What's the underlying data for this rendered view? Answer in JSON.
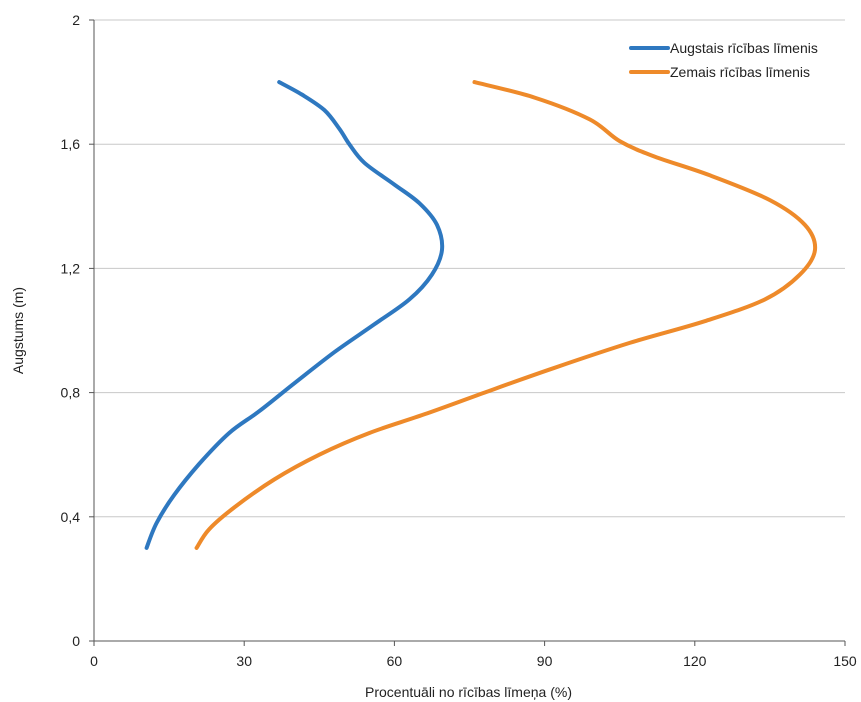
{
  "chart_data": {
    "type": "line",
    "title": "",
    "xlabel": "Procentuāli no rīcības līmeņa (%)",
    "ylabel": "Augstums (m)",
    "xlim": [
      0,
      150
    ],
    "ylim": [
      0,
      2
    ],
    "x_ticks": [
      "0",
      "30",
      "60",
      "90",
      "120",
      "150"
    ],
    "y_ticks": [
      "0",
      "0,4",
      "0,8",
      "1,2",
      "1,6",
      "2"
    ],
    "grid": "horizontal",
    "legend_position": "top-right",
    "series": [
      {
        "name": "Augstais rīcības līmenis",
        "color": "#2e78c0",
        "points": [
          [
            10.5,
            0.3
          ],
          [
            12.5,
            0.38
          ],
          [
            16,
            0.47
          ],
          [
            21,
            0.57
          ],
          [
            27,
            0.67
          ],
          [
            33,
            0.74
          ],
          [
            40,
            0.83
          ],
          [
            48,
            0.93
          ],
          [
            56,
            1.02
          ],
          [
            63,
            1.1
          ],
          [
            67.5,
            1.18
          ],
          [
            69.5,
            1.26
          ],
          [
            68.5,
            1.34
          ],
          [
            65,
            1.41
          ],
          [
            60,
            1.47
          ],
          [
            54,
            1.54
          ],
          [
            51,
            1.6
          ],
          [
            49,
            1.65
          ],
          [
            46,
            1.71
          ],
          [
            41.5,
            1.76
          ],
          [
            37,
            1.8
          ]
        ]
      },
      {
        "name": "Zemais rīcības līmenis",
        "color": "#ee8a2a",
        "points": [
          [
            20.5,
            0.3
          ],
          [
            23,
            0.36
          ],
          [
            28,
            0.43
          ],
          [
            36,
            0.52
          ],
          [
            45,
            0.6
          ],
          [
            55,
            0.67
          ],
          [
            66,
            0.73
          ],
          [
            78,
            0.8
          ],
          [
            92,
            0.88
          ],
          [
            107,
            0.96
          ],
          [
            122,
            1.03
          ],
          [
            134,
            1.1
          ],
          [
            141,
            1.18
          ],
          [
            144,
            1.26
          ],
          [
            142,
            1.34
          ],
          [
            135,
            1.42
          ],
          [
            123,
            1.5
          ],
          [
            112,
            1.56
          ],
          [
            105,
            1.61
          ],
          [
            99,
            1.68
          ],
          [
            88,
            1.75
          ],
          [
            76,
            1.8
          ]
        ]
      }
    ]
  }
}
